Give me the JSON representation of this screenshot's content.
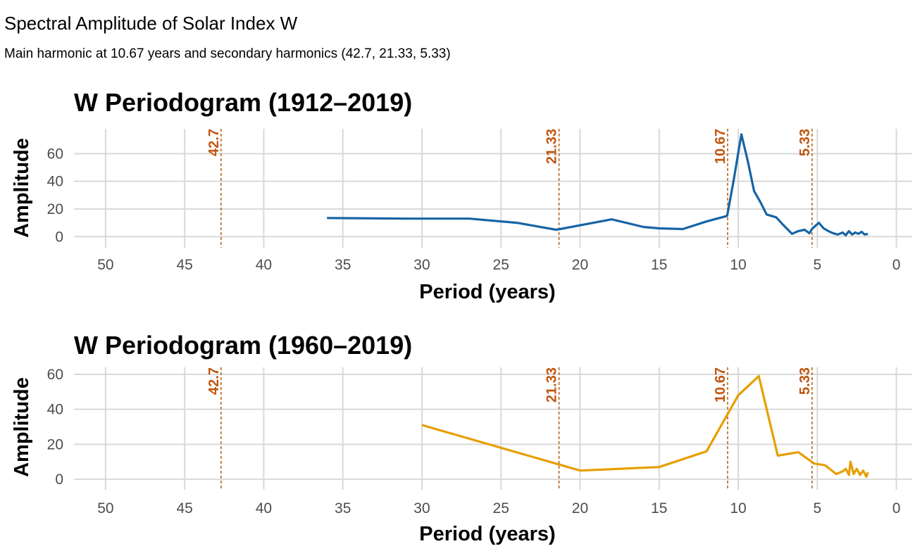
{
  "title": "Spectral Amplitude of Solar Index W",
  "subtitle": "Main harmonic at 10.67 years and secondary harmonics (42.7, 21.33, 5.33)",
  "colors": {
    "harmonic": "#b5651d",
    "harmonic_label": "#c0550e",
    "grid": "#d9d9d9"
  },
  "chart_data": [
    {
      "type": "line",
      "title": "W Periodogram (1912–2019)",
      "xlabel": "Period (years)",
      "ylabel": "Amplitude",
      "xlim": [
        52,
        -1
      ],
      "ylim": [
        -8,
        78
      ],
      "xticks": [
        50,
        45,
        40,
        35,
        30,
        25,
        20,
        15,
        10,
        5,
        0
      ],
      "yticks": [
        0,
        20,
        40,
        60
      ],
      "color": "#1764a5",
      "harmonics": [
        42.7,
        21.33,
        10.67,
        5.33
      ],
      "harmonic_labels": [
        "42.7",
        "21.33",
        "10.67",
        "5.33"
      ],
      "x": [
        36,
        31,
        27,
        24,
        21.5,
        18,
        16,
        15,
        13.5,
        12,
        10.7,
        10.3,
        9.8,
        9.4,
        9,
        8.6,
        8.2,
        7.6,
        7.2,
        6.6,
        6.2,
        5.8,
        5.5,
        5.3,
        4.9,
        4.6,
        4.3,
        4,
        3.7,
        3.4,
        3.2,
        3,
        2.8,
        2.6,
        2.4,
        2.2,
        2,
        1.8
      ],
      "y": [
        13.5,
        13,
        13,
        10,
        5,
        12.5,
        7,
        6,
        5.5,
        11,
        15,
        40,
        74,
        55,
        33,
        25,
        16,
        14,
        9,
        2,
        4,
        5,
        2.5,
        6,
        10,
        6,
        4,
        2.5,
        1.5,
        3,
        1,
        4,
        1.5,
        3,
        2,
        3.5,
        1.5,
        2
      ]
    },
    {
      "type": "line",
      "title": "W Periodogram (1960–2019)",
      "xlabel": "Period (years)",
      "ylabel": "Amplitude",
      "xlim": [
        52,
        -1
      ],
      "ylim": [
        -6,
        64
      ],
      "xticks": [
        50,
        45,
        40,
        35,
        30,
        25,
        20,
        15,
        10,
        5,
        0
      ],
      "yticks": [
        0,
        20,
        40,
        60
      ],
      "color": "#e69f00",
      "harmonics": [
        42.7,
        21.33,
        10.67,
        5.33
      ],
      "harmonic_labels": [
        "42.7",
        "21.33",
        "10.67",
        "5.33"
      ],
      "x": [
        30,
        20,
        15,
        12,
        10,
        8.7,
        7.5,
        6.2,
        5.2,
        4.5,
        3.8,
        3.4,
        3.2,
        3,
        2.9,
        2.7,
        2.5,
        2.3,
        2.1,
        1.9,
        1.8
      ],
      "y": [
        31,
        5,
        7,
        16,
        48,
        59,
        13.5,
        15.5,
        9,
        8,
        3,
        4.5,
        6,
        2.5,
        10,
        3,
        6,
        2.5,
        5,
        1.5,
        4
      ]
    }
  ]
}
